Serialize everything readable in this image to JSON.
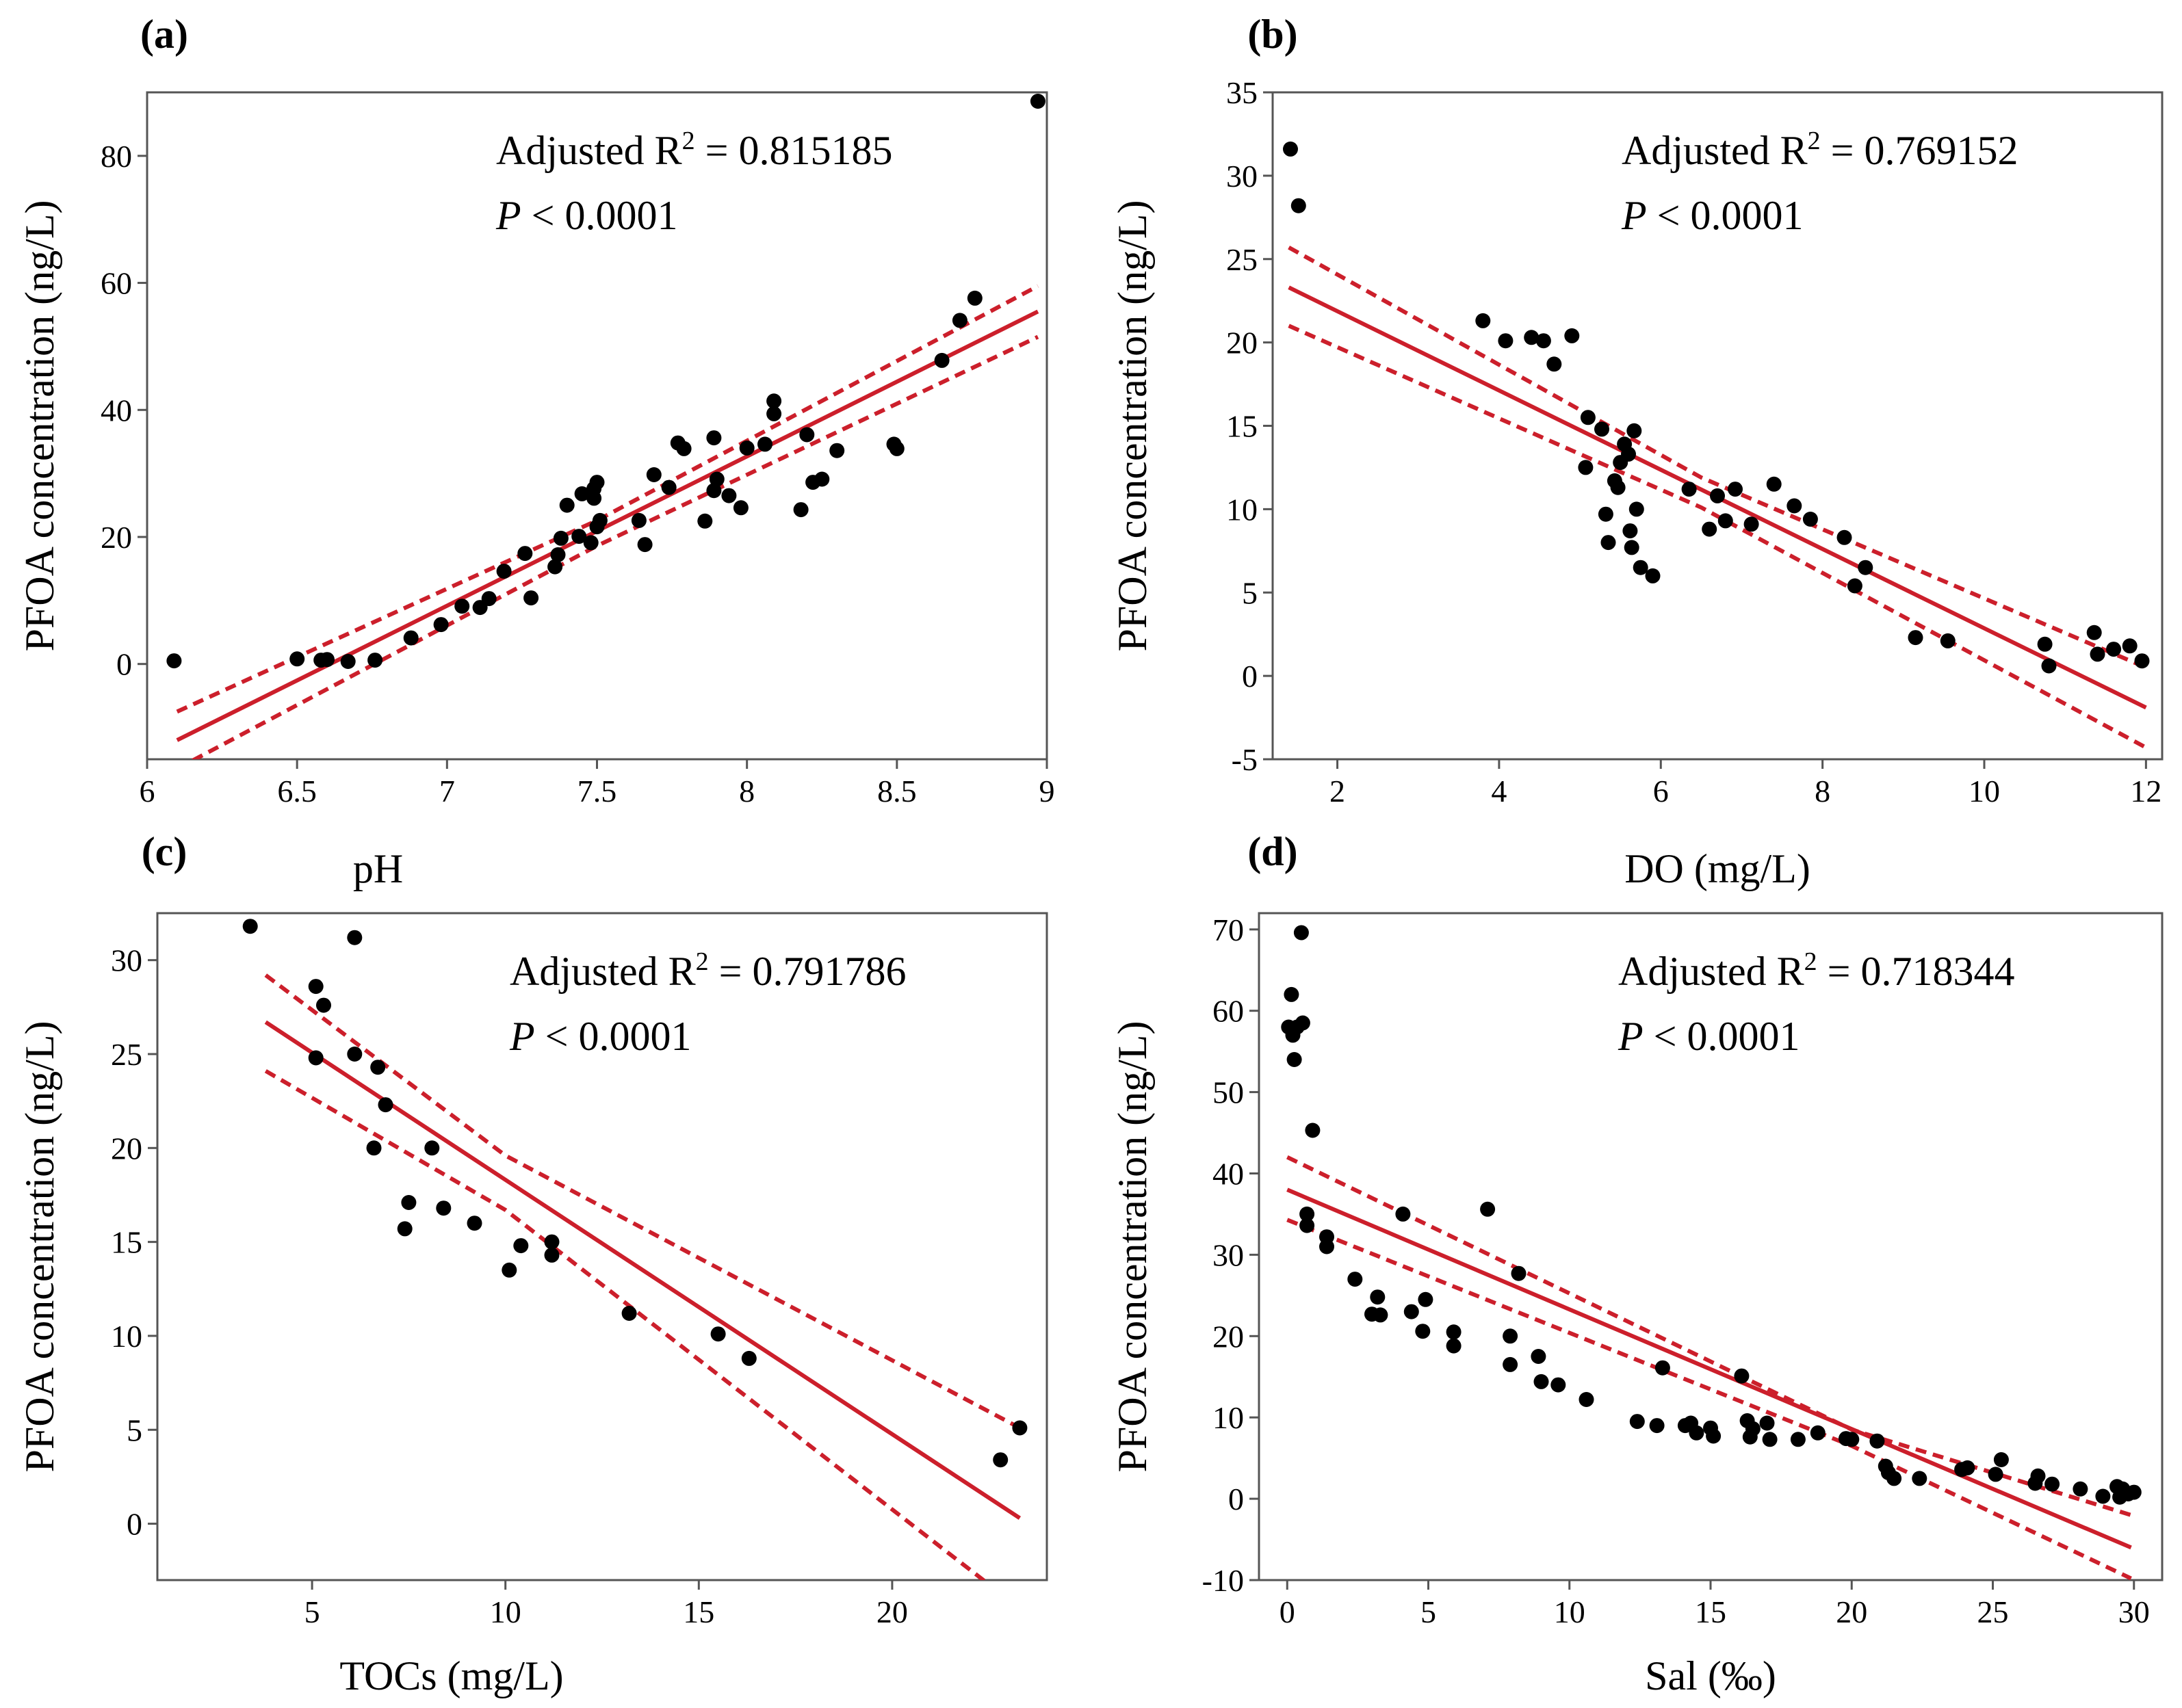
{
  "colors": {
    "fit_line": "#cc1f2b",
    "points": "#000000",
    "axes": "#555555"
  },
  "chart_data": [
    {
      "type": "scatter",
      "panel": "(a)",
      "xlabel": "pH",
      "ylabel": "PFOA concentration (ng/L)",
      "xlim": [
        6,
        9
      ],
      "ylim": [
        -15,
        90
      ],
      "xticks": [
        6,
        6.5,
        7,
        7.5,
        8,
        8.5,
        9
      ],
      "xtick_labels": [
        "6",
        "6.5",
        "7",
        "7.5",
        "8",
        "8.5",
        "9"
      ],
      "yticks": [
        0,
        20,
        40,
        60,
        80
      ],
      "ytick_labels": [
        "0",
        "20",
        "40",
        "60",
        "80"
      ],
      "annotation": {
        "r2_prefix": "Adjusted R",
        "r2_sup": "2",
        "r2_value": " = 0.815185",
        "p_symbol": "P",
        "p_value": " < 0.0001"
      },
      "fit": {
        "x": [
          6.1,
          8.97
        ],
        "y": [
          -12,
          55.5
        ]
      },
      "ci_upper": {
        "x": [
          6.1,
          7.5,
          8.97
        ],
        "y": [
          -7.5,
          22.6,
          59.5
        ]
      },
      "ci_lower": {
        "x": [
          6.1,
          7.5,
          8.97
        ],
        "y": [
          -16.5,
          18.6,
          51.5
        ]
      },
      "points": [
        [
          6.09,
          0.5
        ],
        [
          6.5,
          0.8
        ],
        [
          6.58,
          0.6
        ],
        [
          6.6,
          0.7
        ],
        [
          6.67,
          0.4
        ],
        [
          6.76,
          0.6
        ],
        [
          6.88,
          4.1
        ],
        [
          6.98,
          6.2
        ],
        [
          7.05,
          9.1
        ],
        [
          7.11,
          8.9
        ],
        [
          7.14,
          10.3
        ],
        [
          7.19,
          14.6
        ],
        [
          7.26,
          17.4
        ],
        [
          7.28,
          10.4
        ],
        [
          7.36,
          15.3
        ],
        [
          7.37,
          17.2
        ],
        [
          7.38,
          19.8
        ],
        [
          7.4,
          25
        ],
        [
          7.44,
          20.1
        ],
        [
          7.45,
          26.8
        ],
        [
          7.48,
          19.1
        ],
        [
          7.49,
          26.1
        ],
        [
          7.49,
          27.6
        ],
        [
          7.5,
          21.6
        ],
        [
          7.51,
          22.6
        ],
        [
          7.5,
          28.6
        ],
        [
          7.64,
          22.6
        ],
        [
          7.66,
          18.8
        ],
        [
          7.69,
          29.8
        ],
        [
          7.74,
          27.8
        ],
        [
          7.77,
          34.8
        ],
        [
          7.79,
          33.9
        ],
        [
          7.86,
          22.5
        ],
        [
          7.89,
          27.3
        ],
        [
          7.89,
          35.6
        ],
        [
          7.9,
          29.1
        ],
        [
          7.94,
          26.5
        ],
        [
          7.98,
          24.6
        ],
        [
          8,
          34
        ],
        [
          8.06,
          34.6
        ],
        [
          8.09,
          39.4
        ],
        [
          8.09,
          41.4
        ],
        [
          8.18,
          24.3
        ],
        [
          8.2,
          36.1
        ],
        [
          8.22,
          28.6
        ],
        [
          8.25,
          29.1
        ],
        [
          8.3,
          33.6
        ],
        [
          8.49,
          34.6
        ],
        [
          8.5,
          33.9
        ],
        [
          8.65,
          47.8
        ],
        [
          8.71,
          54.1
        ],
        [
          8.76,
          57.6
        ],
        [
          8.97,
          88.6
        ]
      ]
    },
    {
      "type": "scatter",
      "panel": "(b)",
      "xlabel": "DO (mg/L)",
      "ylabel": "PFOA concentration (ng/L)",
      "xlim": [
        1.2,
        12.2
      ],
      "ylim": [
        -5,
        35
      ],
      "xticks": [
        2,
        4,
        6,
        8,
        10,
        12
      ],
      "xtick_labels": [
        "2",
        "4",
        "6",
        "8",
        "10",
        "12"
      ],
      "yticks": [
        -5,
        0,
        5,
        10,
        15,
        20,
        25,
        30,
        35
      ],
      "ytick_labels": [
        "-5",
        "0",
        "5",
        "10",
        "15",
        "20",
        "25",
        "30",
        "35"
      ],
      "annotation": {
        "r2_prefix": "Adjusted R",
        "r2_sup": "2",
        "r2_value": " = 0.769152",
        "p_symbol": "P",
        "p_value": " < 0.0001"
      },
      "fit": {
        "x": [
          1.4,
          12
        ],
        "y": [
          23.3,
          -1.9
        ]
      },
      "ci_upper": {
        "x": [
          1.4,
          6.5,
          12
        ],
        "y": [
          25.7,
          11.9,
          0.5
        ]
      },
      "ci_lower": {
        "x": [
          1.4,
          6.5,
          12
        ],
        "y": [
          21,
          10.1,
          -4.3
        ]
      },
      "points": [
        [
          1.42,
          31.6
        ],
        [
          1.52,
          28.2
        ],
        [
          3.8,
          21.3
        ],
        [
          4.08,
          20.1
        ],
        [
          4.4,
          20.3
        ],
        [
          4.55,
          20.1
        ],
        [
          4.68,
          18.7
        ],
        [
          4.9,
          20.4
        ],
        [
          5.07,
          12.5
        ],
        [
          5.1,
          15.5
        ],
        [
          5.27,
          14.8
        ],
        [
          5.32,
          9.7
        ],
        [
          5.35,
          8
        ],
        [
          5.43,
          11.7
        ],
        [
          5.47,
          11.3
        ],
        [
          5.5,
          12.8
        ],
        [
          5.55,
          13.9
        ],
        [
          5.6,
          13.3
        ],
        [
          5.62,
          8.7
        ],
        [
          5.64,
          7.7
        ],
        [
          5.67,
          14.7
        ],
        [
          5.7,
          10
        ],
        [
          5.75,
          6.5
        ],
        [
          5.9,
          6
        ],
        [
          6.35,
          11.2
        ],
        [
          6.6,
          8.8
        ],
        [
          6.7,
          10.8
        ],
        [
          6.8,
          9.3
        ],
        [
          6.92,
          11.2
        ],
        [
          7.12,
          9.1
        ],
        [
          7.4,
          11.5
        ],
        [
          7.65,
          10.2
        ],
        [
          7.85,
          9.4
        ],
        [
          8.27,
          8.3
        ],
        [
          8.4,
          5.4
        ],
        [
          8.53,
          6.5
        ],
        [
          9.15,
          2.3
        ],
        [
          9.55,
          2.1
        ],
        [
          10.75,
          1.9
        ],
        [
          10.8,
          0.6
        ],
        [
          11.36,
          2.6
        ],
        [
          11.4,
          1.3
        ],
        [
          11.6,
          1.6
        ],
        [
          11.8,
          1.8
        ],
        [
          11.95,
          0.9
        ]
      ]
    },
    {
      "type": "scatter",
      "panel": "(c)",
      "xlabel": "TOCs (mg/L)",
      "ylabel": "PFOA concentration (ng/L)",
      "xlim": [
        1,
        24
      ],
      "ylim": [
        -3,
        32.5
      ],
      "xticks": [
        5,
        10,
        15,
        20
      ],
      "xtick_labels": [
        "5",
        "10",
        "15",
        "20"
      ],
      "yticks": [
        0,
        5,
        10,
        15,
        20,
        25,
        30
      ],
      "ytick_labels": [
        "0",
        "5",
        "10",
        "15",
        "20",
        "25",
        "30"
      ],
      "annotation": {
        "r2_prefix": "Adjusted R",
        "r2_sup": "2",
        "r2_value": " = 0.791786",
        "p_symbol": "P",
        "p_value": " < 0.0001"
      },
      "fit": {
        "x": [
          3.8,
          23.3
        ],
        "y": [
          26.7,
          0.3
        ]
      },
      "ci_upper": {
        "x": [
          3.8,
          10,
          23.3
        ],
        "y": [
          29.2,
          19.6,
          5.1
        ]
      },
      "ci_lower": {
        "x": [
          3.8,
          10,
          23.3
        ],
        "y": [
          24.1,
          16.7,
          -4.5
        ]
      },
      "points": [
        [
          3.4,
          31.8
        ],
        [
          5.1,
          24.8
        ],
        [
          5.1,
          28.6
        ],
        [
          5.3,
          27.6
        ],
        [
          6.1,
          25
        ],
        [
          6.1,
          31.2
        ],
        [
          6.6,
          20
        ],
        [
          6.7,
          24.3
        ],
        [
          6.9,
          22.3
        ],
        [
          7.4,
          15.7
        ],
        [
          7.5,
          17.1
        ],
        [
          8.1,
          20
        ],
        [
          8.4,
          16.8
        ],
        [
          9.2,
          16
        ],
        [
          10.1,
          13.5
        ],
        [
          10.4,
          14.8
        ],
        [
          11.2,
          15
        ],
        [
          11.2,
          14.3
        ],
        [
          13.2,
          11.2
        ],
        [
          15.5,
          10.1
        ],
        [
          16.3,
          8.8
        ],
        [
          22.8,
          3.4
        ],
        [
          23.3,
          5.1
        ]
      ]
    },
    {
      "type": "scatter",
      "panel": "(d)",
      "xlabel": "Sal (‰)",
      "ylabel": "PFOA concentration (ng/L)",
      "xlim": [
        -1,
        31
      ],
      "ylim": [
        -10,
        72
      ],
      "xticks": [
        0,
        5,
        10,
        15,
        20,
        25,
        30
      ],
      "xtick_labels": [
        "0",
        "5",
        "10",
        "15",
        "20",
        "25",
        "30"
      ],
      "yticks": [
        -10,
        0,
        10,
        20,
        30,
        40,
        50,
        60,
        70
      ],
      "ytick_labels": [
        "-10",
        "0",
        "10",
        "20",
        "30",
        "40",
        "50",
        "60",
        "70"
      ],
      "annotation": {
        "r2_prefix": "Adjusted R",
        "r2_sup": "2",
        "r2_value": " = 0.718344",
        "p_symbol": "P",
        "p_value": " < 0.0001"
      },
      "fit": {
        "x": [
          0,
          29.9
        ],
        "y": [
          38,
          -6
        ]
      },
      "ci_upper": {
        "x": [
          0,
          20,
          29.9
        ],
        "y": [
          42,
          8.5,
          -2
        ]
      },
      "ci_lower": {
        "x": [
          0,
          20,
          29.9
        ],
        "y": [
          34.3,
          6.5,
          -9.8
        ]
      },
      "points": [
        [
          0.05,
          58
        ],
        [
          0.15,
          62
        ],
        [
          0.2,
          57
        ],
        [
          0.25,
          54
        ],
        [
          0.35,
          58
        ],
        [
          0.5,
          69.6
        ],
        [
          0.55,
          58.5
        ],
        [
          0.7,
          35
        ],
        [
          0.7,
          33.6
        ],
        [
          0.9,
          45.3
        ],
        [
          1.4,
          32.2
        ],
        [
          1.4,
          31
        ],
        [
          2.4,
          27
        ],
        [
          3,
          22.7
        ],
        [
          3.2,
          24.8
        ],
        [
          3.3,
          22.6
        ],
        [
          4.1,
          35
        ],
        [
          4.4,
          23
        ],
        [
          4.8,
          20.6
        ],
        [
          4.9,
          24.5
        ],
        [
          5.9,
          20.5
        ],
        [
          5.9,
          18.8
        ],
        [
          7.1,
          35.6
        ],
        [
          7.9,
          20
        ],
        [
          7.9,
          16.5
        ],
        [
          8.2,
          27.7
        ],
        [
          8.9,
          17.5
        ],
        [
          9,
          14.4
        ],
        [
          9.6,
          14
        ],
        [
          10.6,
          12.2
        ],
        [
          12.4,
          9.5
        ],
        [
          13.1,
          9
        ],
        [
          13.3,
          16.1
        ],
        [
          14.1,
          9
        ],
        [
          14.3,
          9.3
        ],
        [
          14.5,
          8.1
        ],
        [
          15,
          8.7
        ],
        [
          15.1,
          7.7
        ],
        [
          16.1,
          15.1
        ],
        [
          16.3,
          9.6
        ],
        [
          16.4,
          7.6
        ],
        [
          16.5,
          8.6
        ],
        [
          17,
          9.3
        ],
        [
          17.1,
          7.3
        ],
        [
          18.1,
          7.3
        ],
        [
          18.8,
          8.1
        ],
        [
          19.8,
          7.4
        ],
        [
          20,
          7.3
        ],
        [
          20.9,
          7.1
        ],
        [
          21.2,
          4
        ],
        [
          21.3,
          3.2
        ],
        [
          21.5,
          2.5
        ],
        [
          22.4,
          2.5
        ],
        [
          23.9,
          3.6
        ],
        [
          24.1,
          3.8
        ],
        [
          25.1,
          3
        ],
        [
          25.3,
          4.8
        ],
        [
          26.5,
          1.9
        ],
        [
          26.6,
          2.8
        ],
        [
          27.1,
          1.8
        ],
        [
          28.1,
          1.2
        ],
        [
          28.9,
          0.3
        ],
        [
          29.4,
          1.5
        ],
        [
          29.5,
          0.2
        ],
        [
          29.6,
          1.2
        ],
        [
          29.8,
          0.6
        ],
        [
          30,
          0.8
        ]
      ]
    }
  ]
}
